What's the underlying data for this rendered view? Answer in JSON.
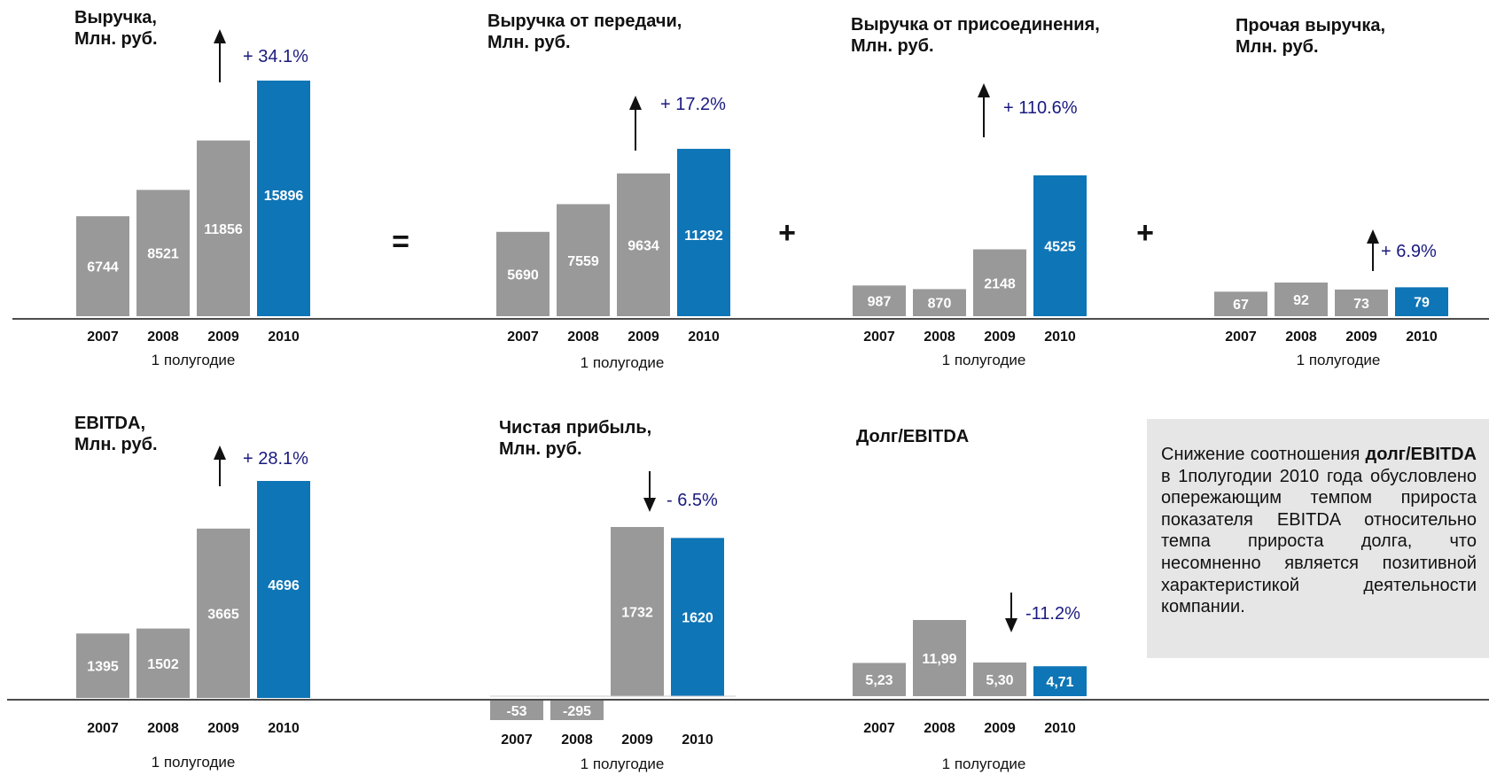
{
  "colors": {
    "historic": "#999999",
    "current": "#0e75b6",
    "growth": "#1a1a80",
    "axis": "#111111"
  },
  "operators": {
    "equals": "=",
    "plus": "+"
  },
  "charts": [
    {
      "id": "revenue",
      "title_lines": [
        "Выручка,",
        "Млн. руб."
      ],
      "categories": [
        "2007",
        "2008",
        "2009",
        "2010"
      ],
      "values": [
        6744,
        8521,
        11856,
        15896
      ],
      "value_labels": [
        "6744",
        "8521",
        "11856",
        "15896"
      ],
      "period_label": "1 полугодие",
      "change": {
        "label": "+ 34.1%",
        "direction": "up"
      },
      "ylim": [
        0,
        15896
      ],
      "type": "bar"
    },
    {
      "id": "transmission-revenue",
      "title_lines": [
        "Выручка от передачи,",
        "Млн. руб."
      ],
      "categories": [
        "2007",
        "2008",
        "2009",
        "2010"
      ],
      "values": [
        5690,
        7559,
        9634,
        11292
      ],
      "value_labels": [
        "5690",
        "7559",
        "9634",
        "11292"
      ],
      "period_label": "1 полугодие",
      "change": {
        "label": "+ 17.2%",
        "direction": "up"
      },
      "ylim": [
        0,
        15896
      ],
      "type": "bar"
    },
    {
      "id": "connection-revenue",
      "title_lines": [
        "Выручка от присоединения,",
        "Млн. руб."
      ],
      "categories": [
        "2007",
        "2008",
        "2009",
        "2010"
      ],
      "values": [
        987,
        870,
        2148,
        4525
      ],
      "value_labels": [
        "987",
        "870",
        "2148",
        "4525"
      ],
      "period_label": "1 полугодие",
      "change": {
        "label": "+ 110.6%",
        "direction": "up"
      },
      "ylim": [
        0,
        8000
      ],
      "type": "bar"
    },
    {
      "id": "other-revenue",
      "title_lines": [
        "Прочая выручка,",
        "Млн. руб."
      ],
      "categories": [
        "2007",
        "2008",
        "2009",
        "2010"
      ],
      "values": [
        67,
        92,
        73,
        79
      ],
      "value_labels": [
        "67",
        "92",
        "73",
        "79"
      ],
      "period_label": "1 полугодие",
      "change": {
        "label": "+ 6.9%",
        "direction": "up"
      },
      "ylim": [
        0,
        400
      ],
      "type": "bar"
    },
    {
      "id": "ebitda",
      "title_lines": [
        "EBITDA,",
        "Млн. руб."
      ],
      "categories": [
        "2007",
        "2008",
        "2009",
        "2010"
      ],
      "values": [
        1395,
        1502,
        3665,
        4696
      ],
      "value_labels": [
        "1395",
        "1502",
        "3665",
        "4696"
      ],
      "period_label": "1 полугодие",
      "change": {
        "label": "+ 28.1%",
        "direction": "up"
      },
      "ylim": [
        0,
        4696
      ],
      "type": "bar"
    },
    {
      "id": "net-profit",
      "title_lines": [
        "Чистая прибыль,",
        "Млн. руб."
      ],
      "categories": [
        "2007",
        "2008",
        "2009",
        "2010"
      ],
      "values": [
        -53,
        -295,
        1732,
        1620
      ],
      "value_labels": [
        "-53",
        "-295",
        "1732",
        "1620"
      ],
      "period_label": "1 полугодие",
      "change": {
        "label": "- 6.5%",
        "direction": "down"
      },
      "ylim": [
        -295,
        1732
      ],
      "type": "bar"
    },
    {
      "id": "debt-ebitda",
      "title_lines": [
        "Долг/EBITDA"
      ],
      "categories": [
        "2007",
        "2008",
        "2009",
        "2010"
      ],
      "values": [
        5.23,
        11.99,
        5.3,
        4.71
      ],
      "value_labels": [
        "5,23",
        "11,99",
        "5,30",
        "4,71"
      ],
      "period_label": "1 полугодие",
      "change": {
        "label": "-11.2%",
        "direction": "down"
      },
      "ylim": [
        0,
        26
      ],
      "type": "bar"
    }
  ],
  "note": {
    "before": "Снижение соотношения ",
    "bold": "долг/EBITDA",
    "after": " в 1полугодии 2010 года обусловлено опережающим темпом прироста показателя EBITDA относительно темпа прироста долга, что несомненно является позитивной характеристикой деятельности компании."
  }
}
